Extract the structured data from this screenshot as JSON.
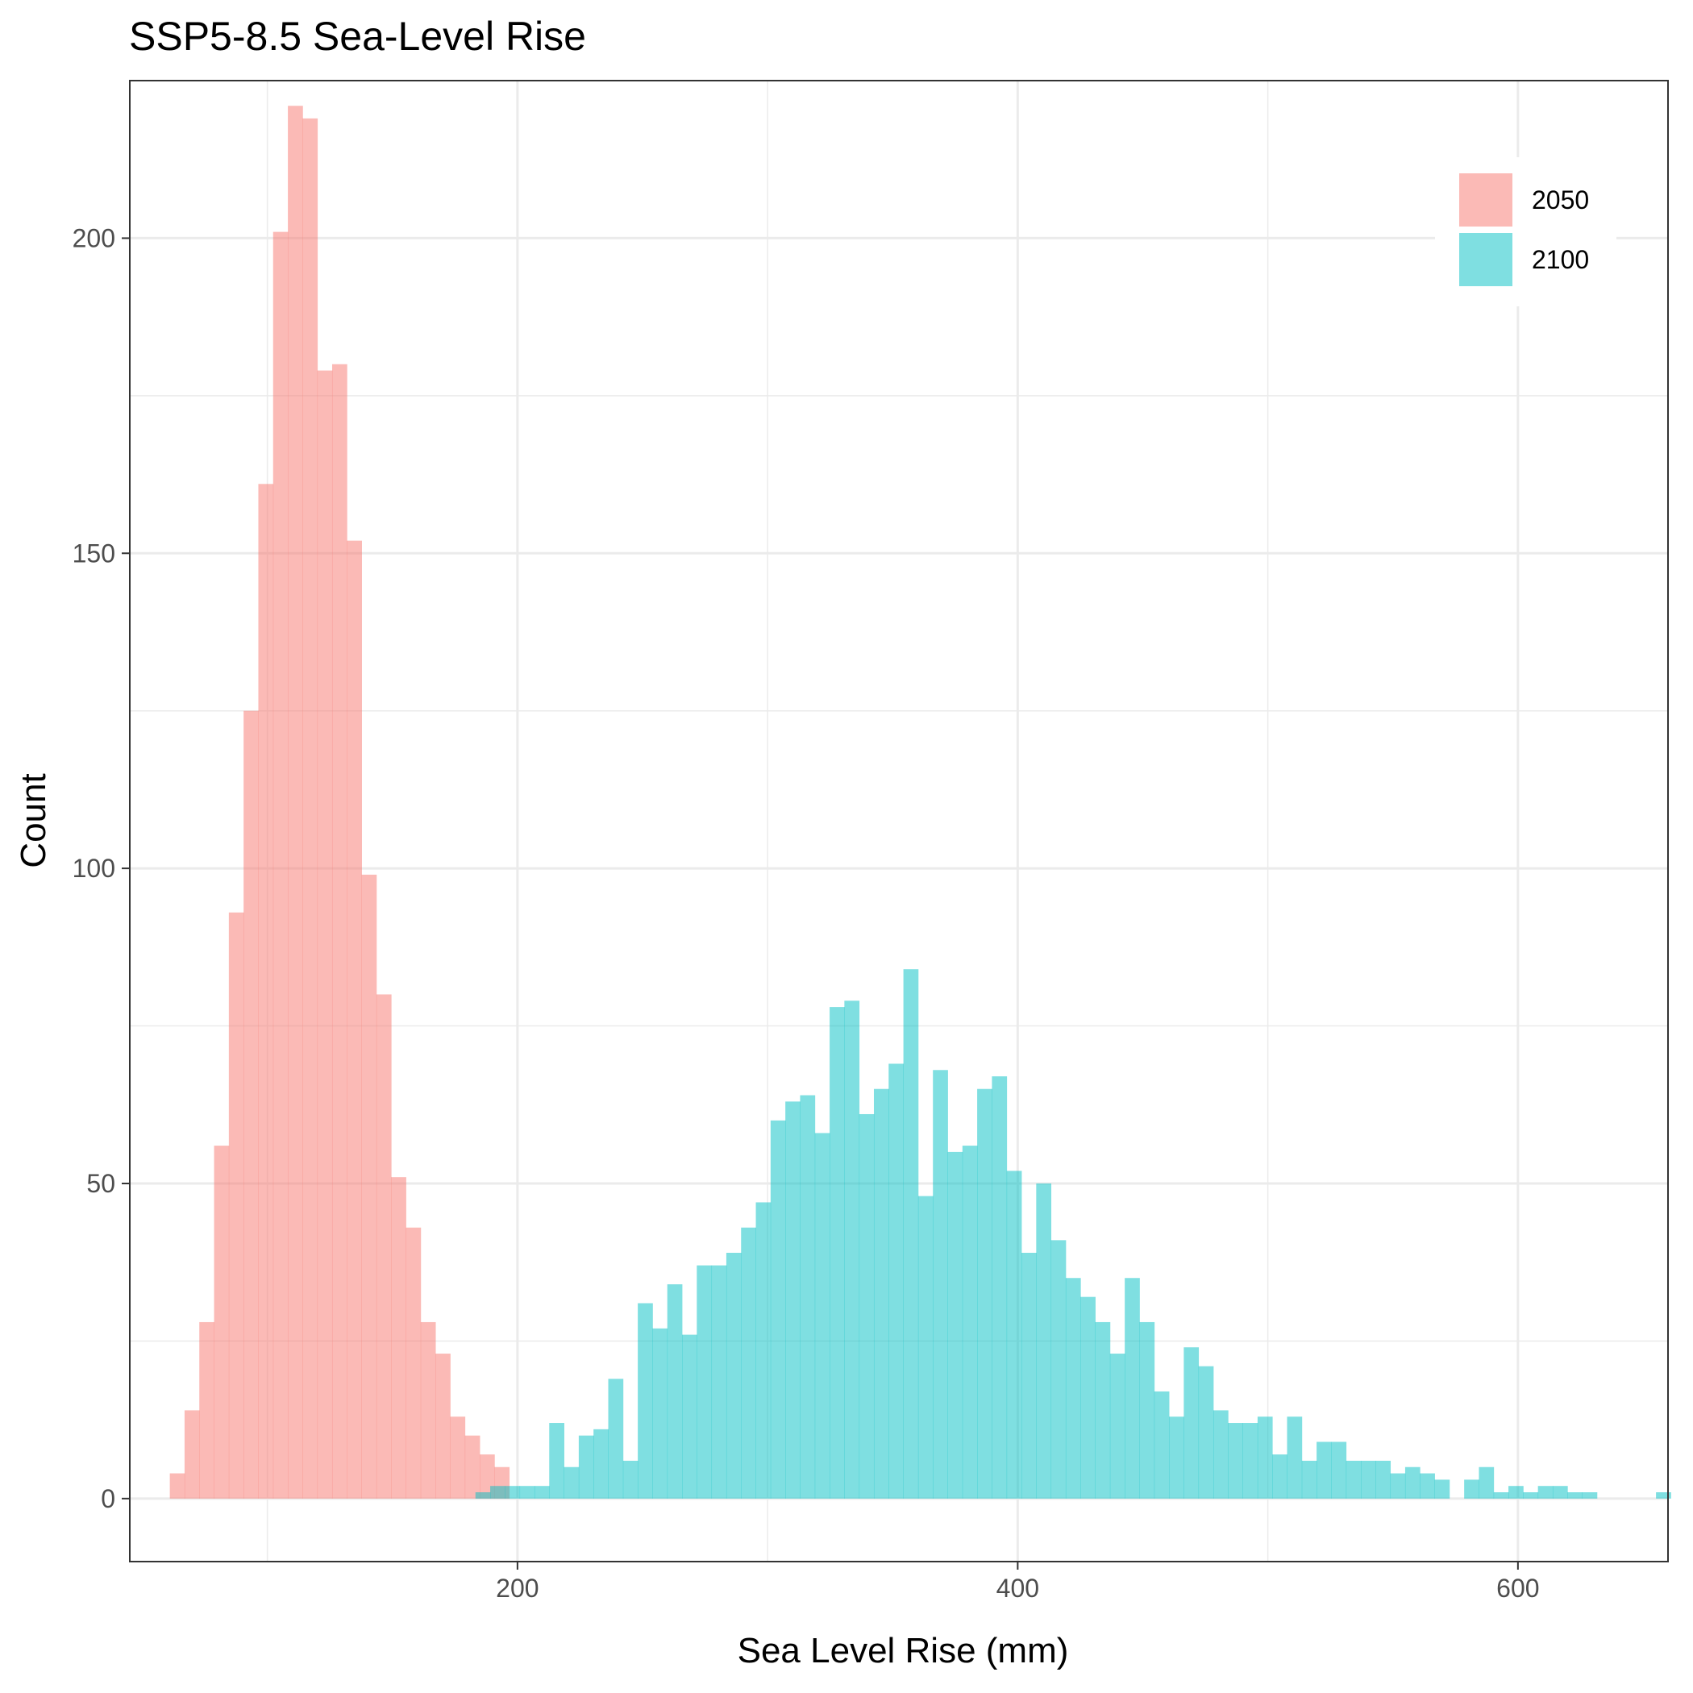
{
  "chart_data": {
    "type": "histogram",
    "title": "SSP5-8.5 Sea-Level Rise",
    "xlabel": "Sea Level Rise (mm)",
    "ylabel": "Count",
    "xlim": [
      45,
      660
    ],
    "ylim": [
      -10,
      225
    ],
    "x_ticks": [
      200,
      400,
      600
    ],
    "y_ticks": [
      0,
      50,
      100,
      150,
      200
    ],
    "grid": true,
    "legend_position": "top-right",
    "bin_width": 5.9,
    "series": [
      {
        "name": "2050",
        "color": "#F8766D",
        "bin_start": 61.0,
        "counts": [
          4,
          14,
          28,
          56,
          93,
          125,
          161,
          201,
          221,
          219,
          179,
          180,
          152,
          99,
          80,
          51,
          43,
          28,
          23,
          13,
          10,
          7,
          5
        ]
      },
      {
        "name": "2100",
        "color": "#00BFC4",
        "bin_start": 183.2,
        "counts": [
          1,
          2,
          2,
          2,
          2,
          12,
          5,
          10,
          11,
          19,
          6,
          31,
          27,
          34,
          26,
          37,
          37,
          39,
          43,
          47,
          60,
          63,
          64,
          58,
          78,
          79,
          61,
          65,
          69,
          84,
          48,
          68,
          55,
          56,
          65,
          67,
          52,
          39,
          50,
          41,
          35,
          32,
          28,
          23,
          35,
          28,
          17,
          13,
          24,
          21,
          14,
          12,
          12,
          13,
          7,
          13,
          6,
          9,
          9,
          6,
          6,
          6,
          4,
          5,
          4,
          3,
          0,
          3,
          5,
          1,
          2,
          1,
          2,
          2,
          1,
          1,
          0,
          0,
          0,
          0,
          1
        ]
      }
    ]
  }
}
